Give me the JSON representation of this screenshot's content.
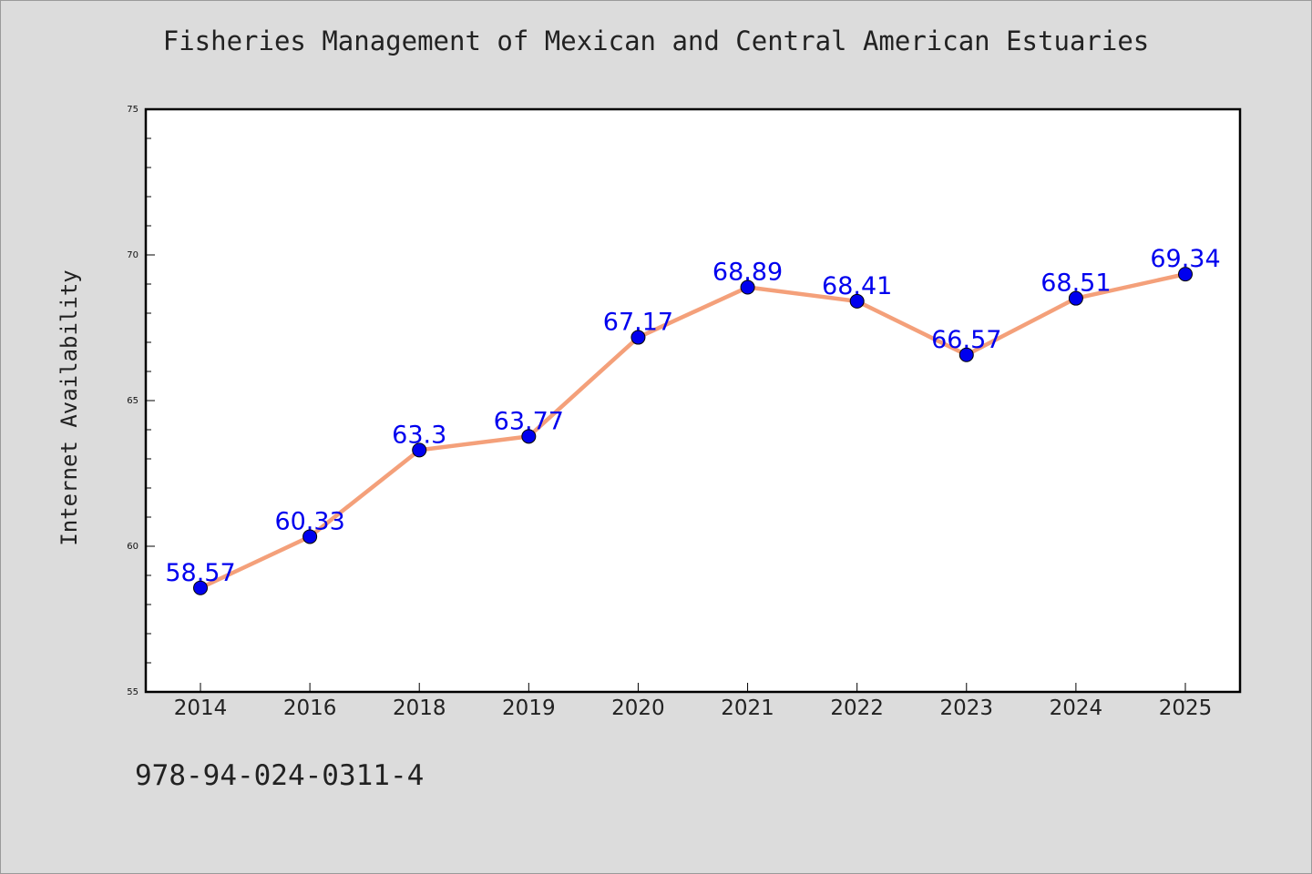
{
  "chart_data": {
    "type": "line",
    "title": "Fisheries Management of Mexican and Central American Estuaries",
    "ylabel": "Internet Availability",
    "xlabel": "",
    "categories": [
      "2014",
      "2016",
      "2018",
      "2019",
      "2020",
      "2021",
      "2022",
      "2023",
      "2024",
      "2025"
    ],
    "series": [
      {
        "values": [
          58.57,
          60.33,
          63.3,
          63.77,
          67.17,
          68.89,
          68.41,
          66.57,
          68.51,
          69.34
        ],
        "labels": [
          "58.57",
          "60.33",
          "63.3",
          "63.77",
          "67.17",
          "68.89",
          "68.41",
          "66.57",
          "68.51",
          "69.34"
        ],
        "line_color": "#f4a07a",
        "marker_color": "#0000ee",
        "label_color": "#0000ee"
      }
    ],
    "ylim": [
      55,
      75
    ],
    "yticks": [
      "55",
      "60",
      "65",
      "70",
      "75"
    ],
    "grid": false,
    "legend": "none"
  },
  "footnote": "978-94-024-0311-4",
  "colors": {
    "background": "#dcdcdc",
    "plot_background": "#ffffff",
    "axis": "#000000"
  }
}
